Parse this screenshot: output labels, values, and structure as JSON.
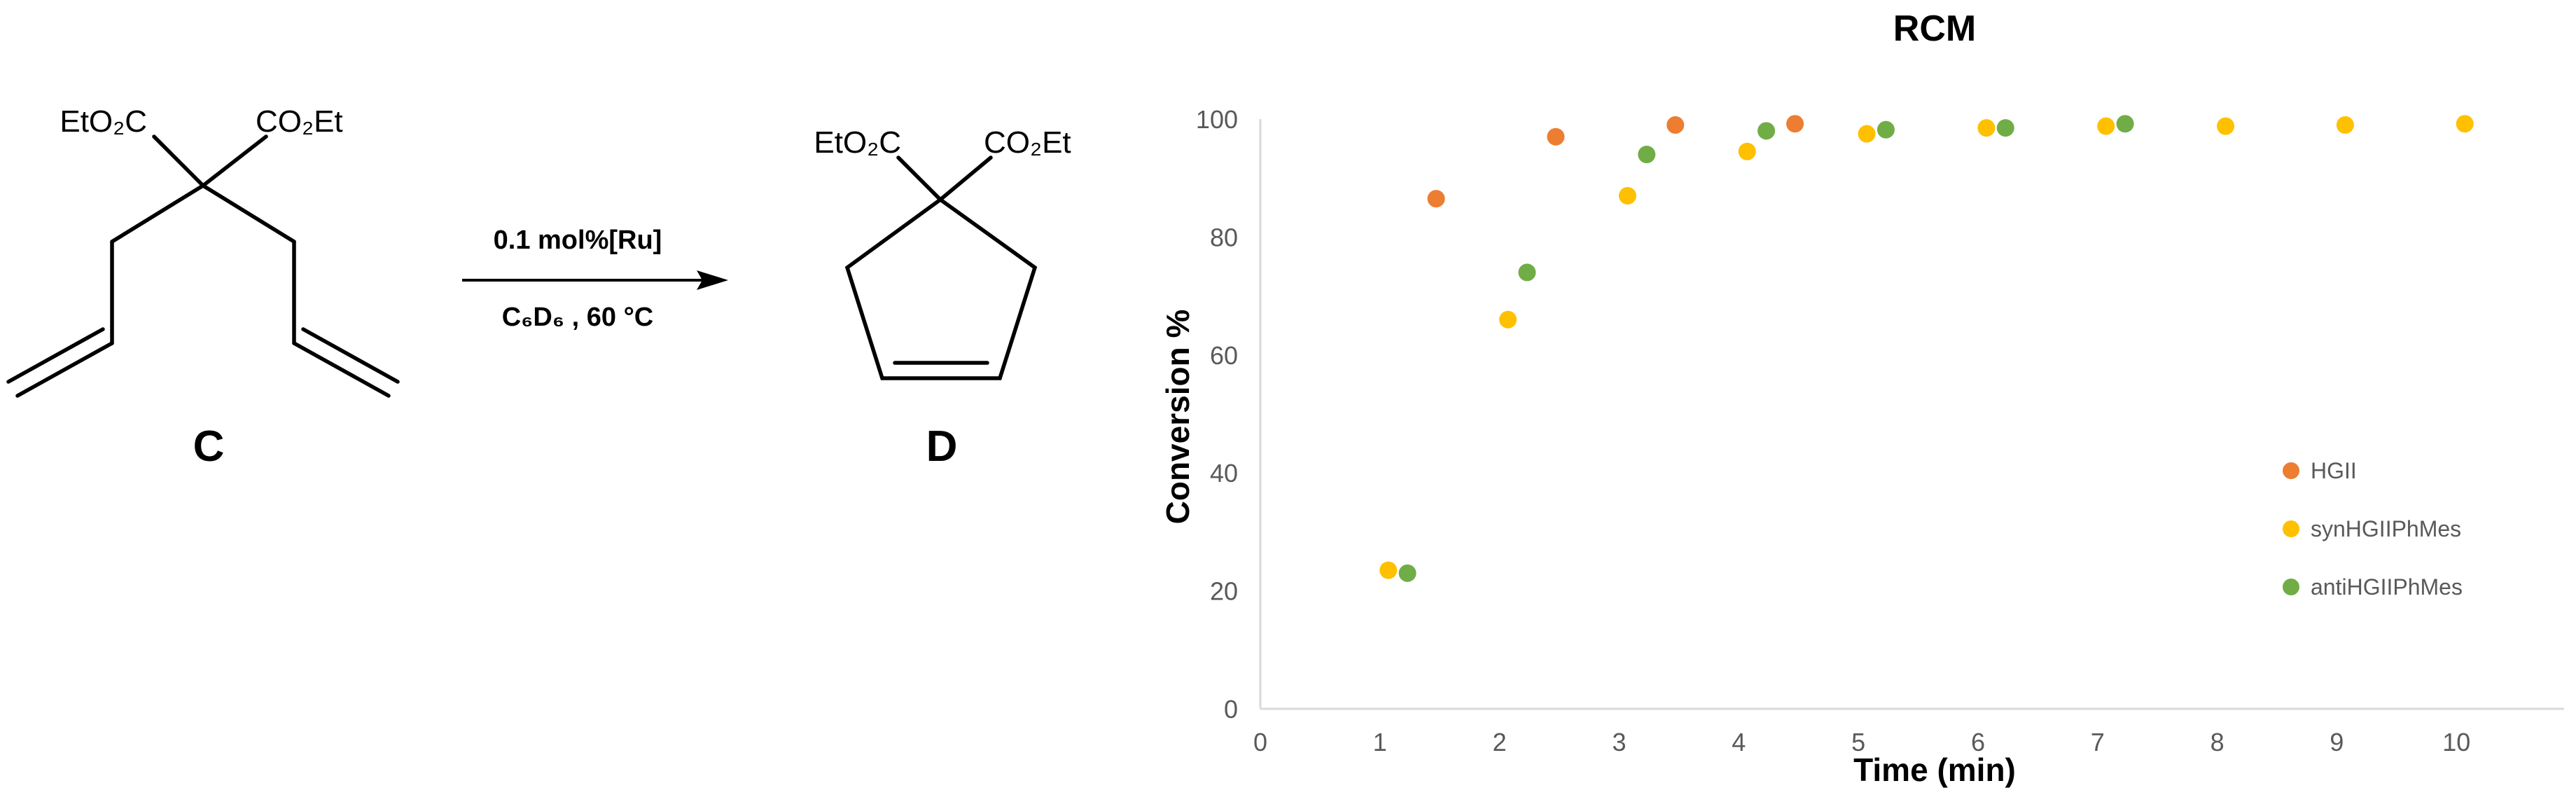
{
  "scheme": {
    "reactant_label": "C",
    "product_label": "D",
    "reactant_groups": {
      "left": "EtO₂C",
      "right": "CO₂Et"
    },
    "product_groups": {
      "left": "EtO₂C",
      "right": "CO₂Et"
    },
    "conditions_top": "0.1 mol%[Ru]",
    "conditions_bottom": "C₆D₆ , 60 °C"
  },
  "chart_data": {
    "type": "scatter",
    "title": "RCM",
    "xlabel": "Time (min)",
    "ylabel": "Conversion %",
    "xlim": [
      0,
      10.9
    ],
    "ylim": [
      0,
      100
    ],
    "xticks": [
      0,
      1,
      2,
      3,
      4,
      5,
      6,
      7,
      8,
      9,
      10
    ],
    "yticks": [
      0,
      20,
      40,
      60,
      80,
      100
    ],
    "grid": false,
    "legend_position": "right",
    "series": [
      {
        "name": "HGII",
        "color": "#ED7D31",
        "points": [
          [
            1.47,
            86.5
          ],
          [
            2.47,
            97.0
          ],
          [
            3.47,
            99.0
          ],
          [
            4.47,
            99.2
          ]
        ]
      },
      {
        "name": "synHGIIPhMes",
        "color": "#FFC000",
        "points": [
          [
            1.07,
            23.5
          ],
          [
            2.07,
            66.0
          ],
          [
            3.07,
            87.0
          ],
          [
            4.07,
            94.5
          ],
          [
            5.07,
            97.5
          ],
          [
            6.07,
            98.5
          ],
          [
            7.07,
            98.8
          ],
          [
            8.07,
            98.8
          ],
          [
            9.07,
            99.0
          ],
          [
            10.07,
            99.2
          ]
        ]
      },
      {
        "name": "antiHGIIPhMes",
        "color": "#70AD47",
        "points": [
          [
            1.23,
            23.0
          ],
          [
            2.23,
            74.0
          ],
          [
            3.23,
            94.0
          ],
          [
            4.23,
            98.0
          ],
          [
            5.23,
            98.2
          ],
          [
            6.23,
            98.5
          ],
          [
            7.23,
            99.2
          ]
        ]
      }
    ]
  }
}
